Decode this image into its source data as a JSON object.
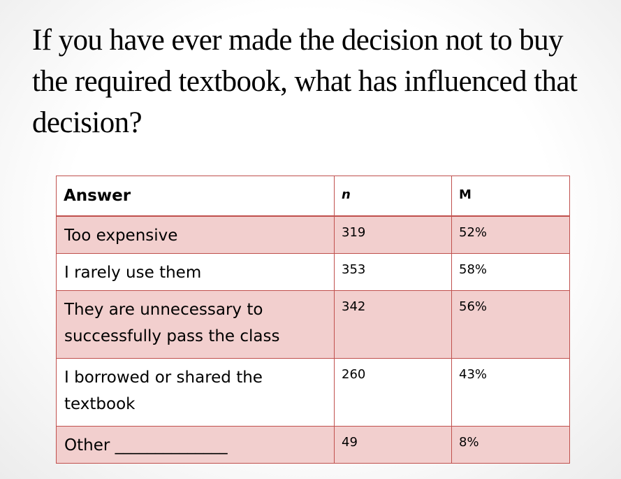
{
  "slide": {
    "title": "If you have ever made the decision not to buy the required textbook, what has influenced that decision?"
  },
  "table": {
    "headers": {
      "answer": "Answer",
      "n": "n",
      "m": "M"
    },
    "rows": [
      {
        "answer": "Too expensive",
        "n": "319",
        "m": "52%"
      },
      {
        "answer": "I rarely use them",
        "n": "353",
        "m": "58%"
      },
      {
        "answer": "They are unnecessary to successfully pass the class",
        "n": "342",
        "m": "56%"
      },
      {
        "answer": "I borrowed or shared the textbook",
        "n": "260",
        "m": "43%"
      },
      {
        "answer": "Other ______________",
        "n": "49",
        "m": "8%"
      }
    ],
    "colors": {
      "border": "#c0504d",
      "shaded_row": "#f2cfce",
      "plain_row": "#ffffff"
    }
  }
}
